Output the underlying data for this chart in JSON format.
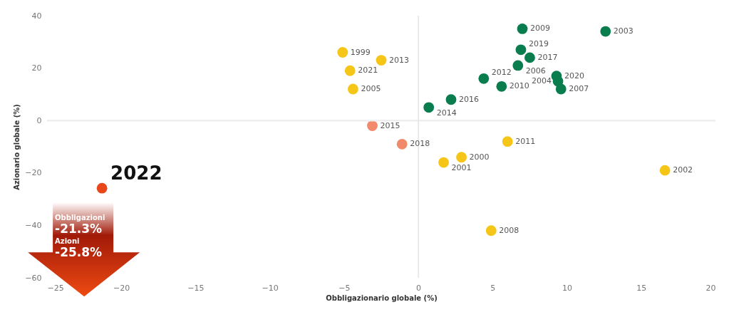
{
  "chart_data": {
    "type": "scatter",
    "xlabel": "Obbligazionario globale (%)",
    "ylabel": "Azionario globale (%)",
    "xlim": [
      -25,
      20
    ],
    "xticks": [
      -25,
      -20,
      -15,
      -10,
      -5,
      0,
      5,
      10,
      15,
      20
    ],
    "ylim": [
      -60,
      40
    ],
    "yticks": [
      -60,
      -40,
      -20,
      0,
      20,
      40
    ],
    "grid": false,
    "legend": false,
    "marker": "circle",
    "ref_lines": [
      {
        "axis": "x",
        "value": 0,
        "color": "#e4e4e4"
      },
      {
        "axis": "y",
        "value": 0,
        "color": "#eeeeee"
      }
    ],
    "series": [
      {
        "color": "#0a7d4f",
        "x": [
          7.0,
          12.6,
          6.9,
          7.5,
          6.7,
          4.4,
          5.6,
          9.3,
          9.4,
          9.6,
          2.2,
          0.7
        ],
        "values": [
          35,
          34,
          27,
          24,
          21,
          16,
          13,
          17,
          15,
          12,
          8,
          5
        ]
      },
      {
        "color": "#f5c518",
        "x": [
          -5.1,
          -2.5,
          -4.6,
          -4.4,
          6.0,
          2.9,
          1.7,
          16.6,
          4.9
        ],
        "values": [
          26,
          23,
          19,
          12,
          -8,
          -14,
          -16,
          -19,
          -42
        ]
      },
      {
        "color": "#f08a6a",
        "x": [
          -3.1,
          -1.1
        ],
        "values": [
          -2,
          -9
        ]
      },
      {
        "color": "#e8471c",
        "x": [
          -21.3
        ],
        "values": [
          -25.8
        ]
      }
    ],
    "annotations": [
      {
        "text": "2009",
        "x": 7.0,
        "y": 35
      },
      {
        "text": "2003",
        "x": 12.6,
        "y": 34
      },
      {
        "text": "2019",
        "x": 6.9,
        "y": 27
      },
      {
        "text": "2017",
        "x": 7.5,
        "y": 24
      },
      {
        "text": "2006",
        "x": 6.7,
        "y": 21
      },
      {
        "text": "2012",
        "x": 4.4,
        "y": 16
      },
      {
        "text": "2010",
        "x": 5.6,
        "y": 13
      },
      {
        "text": "2020",
        "x": 9.3,
        "y": 17
      },
      {
        "text": "2004",
        "x": 9.4,
        "y": 15
      },
      {
        "text": "2007",
        "x": 9.6,
        "y": 12
      },
      {
        "text": "2016",
        "x": 2.2,
        "y": 8
      },
      {
        "text": "2014",
        "x": 0.7,
        "y": 5
      },
      {
        "text": "1999",
        "x": -5.1,
        "y": 26
      },
      {
        "text": "2013",
        "x": -2.5,
        "y": 23
      },
      {
        "text": "2021",
        "x": -4.6,
        "y": 19
      },
      {
        "text": "2005",
        "x": -4.4,
        "y": 12
      },
      {
        "text": "2011",
        "x": 6.0,
        "y": -8
      },
      {
        "text": "2000",
        "x": 2.9,
        "y": -14
      },
      {
        "text": "2001",
        "x": 1.7,
        "y": -16
      },
      {
        "text": "2002",
        "x": 16.6,
        "y": -19
      },
      {
        "text": "2008",
        "x": 4.9,
        "y": -42
      },
      {
        "text": "2015",
        "x": -3.1,
        "y": -2
      },
      {
        "text": "2018",
        "x": -1.1,
        "y": -9
      },
      {
        "text": "2022",
        "x": -21.3,
        "y": -25.8
      },
      "Obbligazioni",
      "-21.3%",
      "Azioni",
      "-25.8%"
    ]
  }
}
